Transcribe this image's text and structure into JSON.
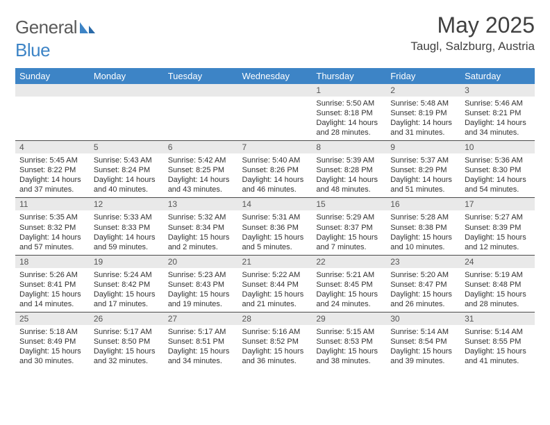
{
  "brand": {
    "part1": "General",
    "part2": "Blue"
  },
  "title": {
    "month": "May 2025",
    "location": "Taugl, Salzburg, Austria"
  },
  "weekday_headers": [
    "Sunday",
    "Monday",
    "Tuesday",
    "Wednesday",
    "Thursday",
    "Friday",
    "Saturday"
  ],
  "style": {
    "header_bg": "#3d84c6",
    "header_fg": "#ffffff",
    "band_bg": "#e9e9e9",
    "rule_color": "#4a4a4a",
    "page_bg": "#ffffff",
    "text_color": "#303030"
  },
  "weeks": [
    [
      {
        "empty": true
      },
      {
        "empty": true
      },
      {
        "empty": true
      },
      {
        "empty": true
      },
      {
        "num": "1",
        "sunrise": "Sunrise: 5:50 AM",
        "sunset": "Sunset: 8:18 PM",
        "daylight1": "Daylight: 14 hours",
        "daylight2": "and 28 minutes."
      },
      {
        "num": "2",
        "sunrise": "Sunrise: 5:48 AM",
        "sunset": "Sunset: 8:19 PM",
        "daylight1": "Daylight: 14 hours",
        "daylight2": "and 31 minutes."
      },
      {
        "num": "3",
        "sunrise": "Sunrise: 5:46 AM",
        "sunset": "Sunset: 8:21 PM",
        "daylight1": "Daylight: 14 hours",
        "daylight2": "and 34 minutes."
      }
    ],
    [
      {
        "num": "4",
        "sunrise": "Sunrise: 5:45 AM",
        "sunset": "Sunset: 8:22 PM",
        "daylight1": "Daylight: 14 hours",
        "daylight2": "and 37 minutes."
      },
      {
        "num": "5",
        "sunrise": "Sunrise: 5:43 AM",
        "sunset": "Sunset: 8:24 PM",
        "daylight1": "Daylight: 14 hours",
        "daylight2": "and 40 minutes."
      },
      {
        "num": "6",
        "sunrise": "Sunrise: 5:42 AM",
        "sunset": "Sunset: 8:25 PM",
        "daylight1": "Daylight: 14 hours",
        "daylight2": "and 43 minutes."
      },
      {
        "num": "7",
        "sunrise": "Sunrise: 5:40 AM",
        "sunset": "Sunset: 8:26 PM",
        "daylight1": "Daylight: 14 hours",
        "daylight2": "and 46 minutes."
      },
      {
        "num": "8",
        "sunrise": "Sunrise: 5:39 AM",
        "sunset": "Sunset: 8:28 PM",
        "daylight1": "Daylight: 14 hours",
        "daylight2": "and 48 minutes."
      },
      {
        "num": "9",
        "sunrise": "Sunrise: 5:37 AM",
        "sunset": "Sunset: 8:29 PM",
        "daylight1": "Daylight: 14 hours",
        "daylight2": "and 51 minutes."
      },
      {
        "num": "10",
        "sunrise": "Sunrise: 5:36 AM",
        "sunset": "Sunset: 8:30 PM",
        "daylight1": "Daylight: 14 hours",
        "daylight2": "and 54 minutes."
      }
    ],
    [
      {
        "num": "11",
        "sunrise": "Sunrise: 5:35 AM",
        "sunset": "Sunset: 8:32 PM",
        "daylight1": "Daylight: 14 hours",
        "daylight2": "and 57 minutes."
      },
      {
        "num": "12",
        "sunrise": "Sunrise: 5:33 AM",
        "sunset": "Sunset: 8:33 PM",
        "daylight1": "Daylight: 14 hours",
        "daylight2": "and 59 minutes."
      },
      {
        "num": "13",
        "sunrise": "Sunrise: 5:32 AM",
        "sunset": "Sunset: 8:34 PM",
        "daylight1": "Daylight: 15 hours",
        "daylight2": "and 2 minutes."
      },
      {
        "num": "14",
        "sunrise": "Sunrise: 5:31 AM",
        "sunset": "Sunset: 8:36 PM",
        "daylight1": "Daylight: 15 hours",
        "daylight2": "and 5 minutes."
      },
      {
        "num": "15",
        "sunrise": "Sunrise: 5:29 AM",
        "sunset": "Sunset: 8:37 PM",
        "daylight1": "Daylight: 15 hours",
        "daylight2": "and 7 minutes."
      },
      {
        "num": "16",
        "sunrise": "Sunrise: 5:28 AM",
        "sunset": "Sunset: 8:38 PM",
        "daylight1": "Daylight: 15 hours",
        "daylight2": "and 10 minutes."
      },
      {
        "num": "17",
        "sunrise": "Sunrise: 5:27 AM",
        "sunset": "Sunset: 8:39 PM",
        "daylight1": "Daylight: 15 hours",
        "daylight2": "and 12 minutes."
      }
    ],
    [
      {
        "num": "18",
        "sunrise": "Sunrise: 5:26 AM",
        "sunset": "Sunset: 8:41 PM",
        "daylight1": "Daylight: 15 hours",
        "daylight2": "and 14 minutes."
      },
      {
        "num": "19",
        "sunrise": "Sunrise: 5:24 AM",
        "sunset": "Sunset: 8:42 PM",
        "daylight1": "Daylight: 15 hours",
        "daylight2": "and 17 minutes."
      },
      {
        "num": "20",
        "sunrise": "Sunrise: 5:23 AM",
        "sunset": "Sunset: 8:43 PM",
        "daylight1": "Daylight: 15 hours",
        "daylight2": "and 19 minutes."
      },
      {
        "num": "21",
        "sunrise": "Sunrise: 5:22 AM",
        "sunset": "Sunset: 8:44 PM",
        "daylight1": "Daylight: 15 hours",
        "daylight2": "and 21 minutes."
      },
      {
        "num": "22",
        "sunrise": "Sunrise: 5:21 AM",
        "sunset": "Sunset: 8:45 PM",
        "daylight1": "Daylight: 15 hours",
        "daylight2": "and 24 minutes."
      },
      {
        "num": "23",
        "sunrise": "Sunrise: 5:20 AM",
        "sunset": "Sunset: 8:47 PM",
        "daylight1": "Daylight: 15 hours",
        "daylight2": "and 26 minutes."
      },
      {
        "num": "24",
        "sunrise": "Sunrise: 5:19 AM",
        "sunset": "Sunset: 8:48 PM",
        "daylight1": "Daylight: 15 hours",
        "daylight2": "and 28 minutes."
      }
    ],
    [
      {
        "num": "25",
        "sunrise": "Sunrise: 5:18 AM",
        "sunset": "Sunset: 8:49 PM",
        "daylight1": "Daylight: 15 hours",
        "daylight2": "and 30 minutes."
      },
      {
        "num": "26",
        "sunrise": "Sunrise: 5:17 AM",
        "sunset": "Sunset: 8:50 PM",
        "daylight1": "Daylight: 15 hours",
        "daylight2": "and 32 minutes."
      },
      {
        "num": "27",
        "sunrise": "Sunrise: 5:17 AM",
        "sunset": "Sunset: 8:51 PM",
        "daylight1": "Daylight: 15 hours",
        "daylight2": "and 34 minutes."
      },
      {
        "num": "28",
        "sunrise": "Sunrise: 5:16 AM",
        "sunset": "Sunset: 8:52 PM",
        "daylight1": "Daylight: 15 hours",
        "daylight2": "and 36 minutes."
      },
      {
        "num": "29",
        "sunrise": "Sunrise: 5:15 AM",
        "sunset": "Sunset: 8:53 PM",
        "daylight1": "Daylight: 15 hours",
        "daylight2": "and 38 minutes."
      },
      {
        "num": "30",
        "sunrise": "Sunrise: 5:14 AM",
        "sunset": "Sunset: 8:54 PM",
        "daylight1": "Daylight: 15 hours",
        "daylight2": "and 39 minutes."
      },
      {
        "num": "31",
        "sunrise": "Sunrise: 5:14 AM",
        "sunset": "Sunset: 8:55 PM",
        "daylight1": "Daylight: 15 hours",
        "daylight2": "and 41 minutes."
      }
    ]
  ]
}
